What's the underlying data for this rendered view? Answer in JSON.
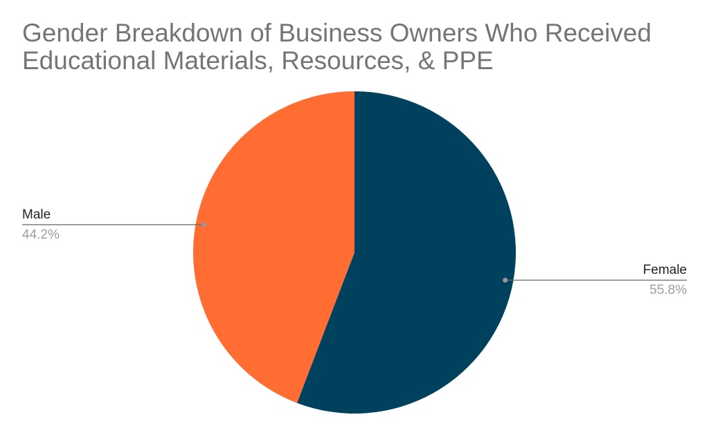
{
  "chart_data": {
    "type": "pie",
    "title": "Gender Breakdown of Business Owners Who Received Educational Materials, Resources, & PPE",
    "categories": [
      "Female",
      "Male"
    ],
    "values": [
      55.8,
      44.2
    ],
    "value_labels": [
      "55.8%",
      "44.2%"
    ],
    "colors": [
      "#00425e",
      "#ff6d33"
    ]
  }
}
